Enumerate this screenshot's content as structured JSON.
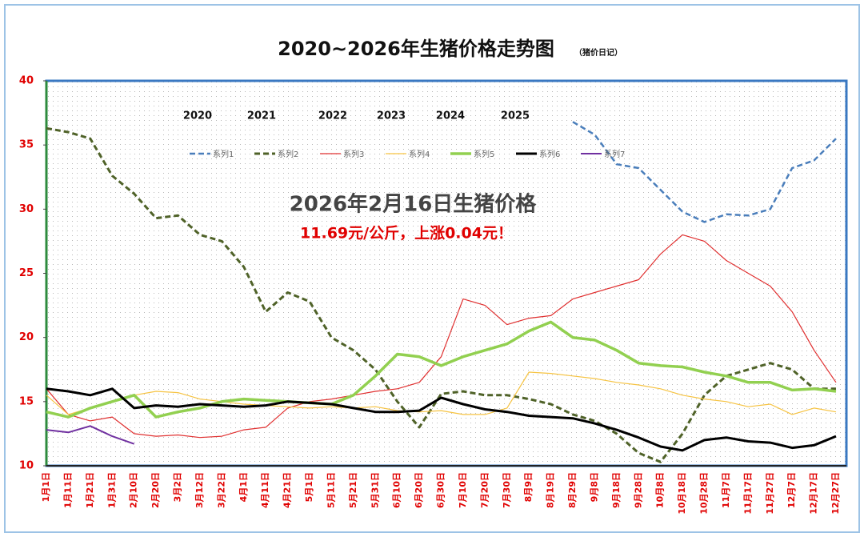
{
  "chart_data": {
    "type": "line",
    "title": "2020~2026年生猪价格走势图",
    "subtitle": "（猪价日记）",
    "annotation_title": "2026年2月16日生猪价格",
    "annotation_text": "11.69元/公斤，上涨0.04元！",
    "year_labels": [
      "2020",
      "2021",
      "2022",
      "2023",
      "2024",
      "2025"
    ],
    "categories": [
      "1月1日",
      "1月11日",
      "1月21日",
      "1月31日",
      "2月10日",
      "2月20日",
      "3月2日",
      "3月12日",
      "3月22日",
      "4月1日",
      "4月11日",
      "4月21日",
      "5月1日",
      "5月11日",
      "5月21日",
      "5月31日",
      "6月10日",
      "6月20日",
      "6月30日",
      "7月10日",
      "7月20日",
      "7月30日",
      "8月9日",
      "8月19日",
      "8月29日",
      "9月8日",
      "9月18日",
      "9月28日",
      "10月8日",
      "10月18日",
      "10月28日",
      "11月7日",
      "11月17日",
      "11月27日",
      "12月7日",
      "12月17日",
      "12月27日"
    ],
    "ylim": [
      10,
      40
    ],
    "yticks": [
      10,
      15,
      20,
      25,
      30,
      35,
      40
    ],
    "grid": false,
    "legend": "top",
    "series": [
      {
        "name": "系列1",
        "color": "#4a7ebb",
        "line_style": "dashed",
        "values": [
          null,
          null,
          null,
          null,
          null,
          null,
          null,
          null,
          null,
          null,
          null,
          null,
          null,
          null,
          null,
          null,
          null,
          null,
          null,
          null,
          null,
          null,
          null,
          null,
          36.8,
          35.8,
          33.5,
          33.2,
          31.5,
          29.8,
          29,
          29.6,
          29.5,
          30,
          33.2,
          33.8,
          35.5
        ]
      },
      {
        "name": "系列2",
        "color": "#4f6228",
        "line_style": "dashed",
        "values": [
          36.3,
          36,
          35.5,
          32.6,
          31.2,
          29.3,
          29.5,
          28,
          27.5,
          25.5,
          22,
          23.5,
          22.8,
          20,
          19,
          17.5,
          15,
          13,
          15.6,
          15.8,
          15.5,
          15.5,
          15.2,
          14.8,
          14,
          13.5,
          12.5,
          11,
          10.3,
          12.5,
          15.5,
          17,
          17.5,
          18,
          17.5,
          16,
          16
        ]
      },
      {
        "name": "系列3",
        "color": "#e03030",
        "line_style": "solid",
        "values": [
          16,
          14,
          13.5,
          13.8,
          12.5,
          12.3,
          12.4,
          12.2,
          12.3,
          12.8,
          13,
          14.5,
          15,
          15.2,
          15.5,
          15.8,
          16,
          16.5,
          18.5,
          23,
          22.5,
          21,
          21.5,
          21.7,
          23,
          23.5,
          24,
          24.5,
          26.5,
          28,
          27.5,
          26,
          25,
          24,
          22,
          19,
          16.5
        ]
      },
      {
        "name": "系列4",
        "color": "#f6c342",
        "line_style": "solid",
        "values": [
          15.5,
          14,
          14.5,
          15,
          15.5,
          15.8,
          15.7,
          15.2,
          15,
          14.8,
          14.7,
          14.6,
          14.5,
          14.6,
          14.5,
          14.6,
          14.3,
          14.2,
          14.3,
          14,
          14,
          14.5,
          17.3,
          17.2,
          17,
          16.8,
          16.5,
          16.3,
          16,
          15.5,
          15.2,
          15,
          14.6,
          14.8,
          14,
          14.5,
          14.2
        ]
      },
      {
        "name": "系列5",
        "color": "#92d050",
        "line_style": "solid",
        "values": [
          14.2,
          13.8,
          14.5,
          15,
          15.5,
          13.8,
          14.2,
          14.5,
          15,
          15.2,
          15.1,
          15,
          14.9,
          14.8,
          15.5,
          17,
          18.7,
          18.5,
          17.8,
          18.5,
          19,
          19.5,
          20.5,
          21.2,
          20,
          19.8,
          19,
          18,
          17.8,
          17.7,
          17.3,
          17,
          16.5,
          16.5,
          15.9,
          16,
          15.8
        ]
      },
      {
        "name": "系列6",
        "color": "#000000",
        "line_style": "solid",
        "values": [
          16,
          15.8,
          15.5,
          16,
          14.5,
          14.7,
          14.6,
          14.8,
          14.7,
          14.6,
          14.7,
          15,
          14.9,
          14.8,
          14.5,
          14.2,
          14.2,
          14.3,
          15.3,
          14.8,
          14.4,
          14.2,
          13.9,
          13.8,
          13.7,
          13.3,
          12.8,
          12.2,
          11.5,
          11.2,
          12,
          12.2,
          11.9,
          11.8,
          11.4,
          11.6,
          12.3
        ]
      },
      {
        "name": "系列7",
        "color": "#7030a0",
        "line_style": "solid",
        "values": [
          12.8,
          12.6,
          13.1,
          12.3,
          11.7,
          null,
          null,
          null,
          null,
          null,
          null,
          null,
          null,
          null,
          null,
          null,
          null,
          null,
          null,
          null,
          null,
          null,
          null,
          null,
          null,
          null,
          null,
          null,
          null,
          null,
          null,
          null,
          null,
          null,
          null,
          null,
          null
        ]
      }
    ]
  }
}
